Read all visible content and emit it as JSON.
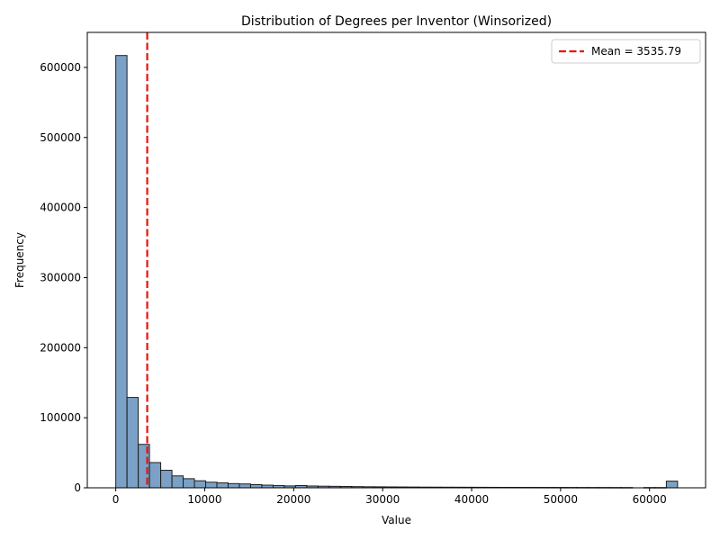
{
  "chart_data": {
    "type": "bar",
    "subtype": "histogram",
    "title": "Distribution of Degrees per Inventor (Winsorized)",
    "xlabel": "Value",
    "ylabel": "Frequency",
    "xlim": [
      -3200,
      66300
    ],
    "ylim": [
      0,
      650000
    ],
    "xticks": [
      0,
      10000,
      20000,
      30000,
      40000,
      50000,
      60000
    ],
    "yticks": [
      0,
      100000,
      200000,
      300000,
      400000,
      500000,
      600000
    ],
    "bin_start": 0,
    "bin_width": 1263,
    "counts": [
      617000,
      129000,
      62000,
      36000,
      25000,
      17000,
      13000,
      10000,
      8000,
      7000,
      6000,
      5500,
      4500,
      3800,
      3300,
      2700,
      3200,
      2600,
      2300,
      2100,
      1900,
      1700,
      1500,
      1400,
      1300,
      1200,
      1100,
      1000,
      950,
      900,
      850,
      800,
      750,
      700,
      650,
      620,
      600,
      580,
      560,
      540,
      520,
      500,
      480,
      460,
      440,
      420,
      0,
      400,
      380,
      9500
    ],
    "bar_color": "#4f81b3",
    "bar_edge_color": "#1f1f1f",
    "mean": 3535.79,
    "mean_color": "#e8120c",
    "legend": {
      "label": "Mean = 3535.79",
      "position": "upper-right"
    }
  }
}
